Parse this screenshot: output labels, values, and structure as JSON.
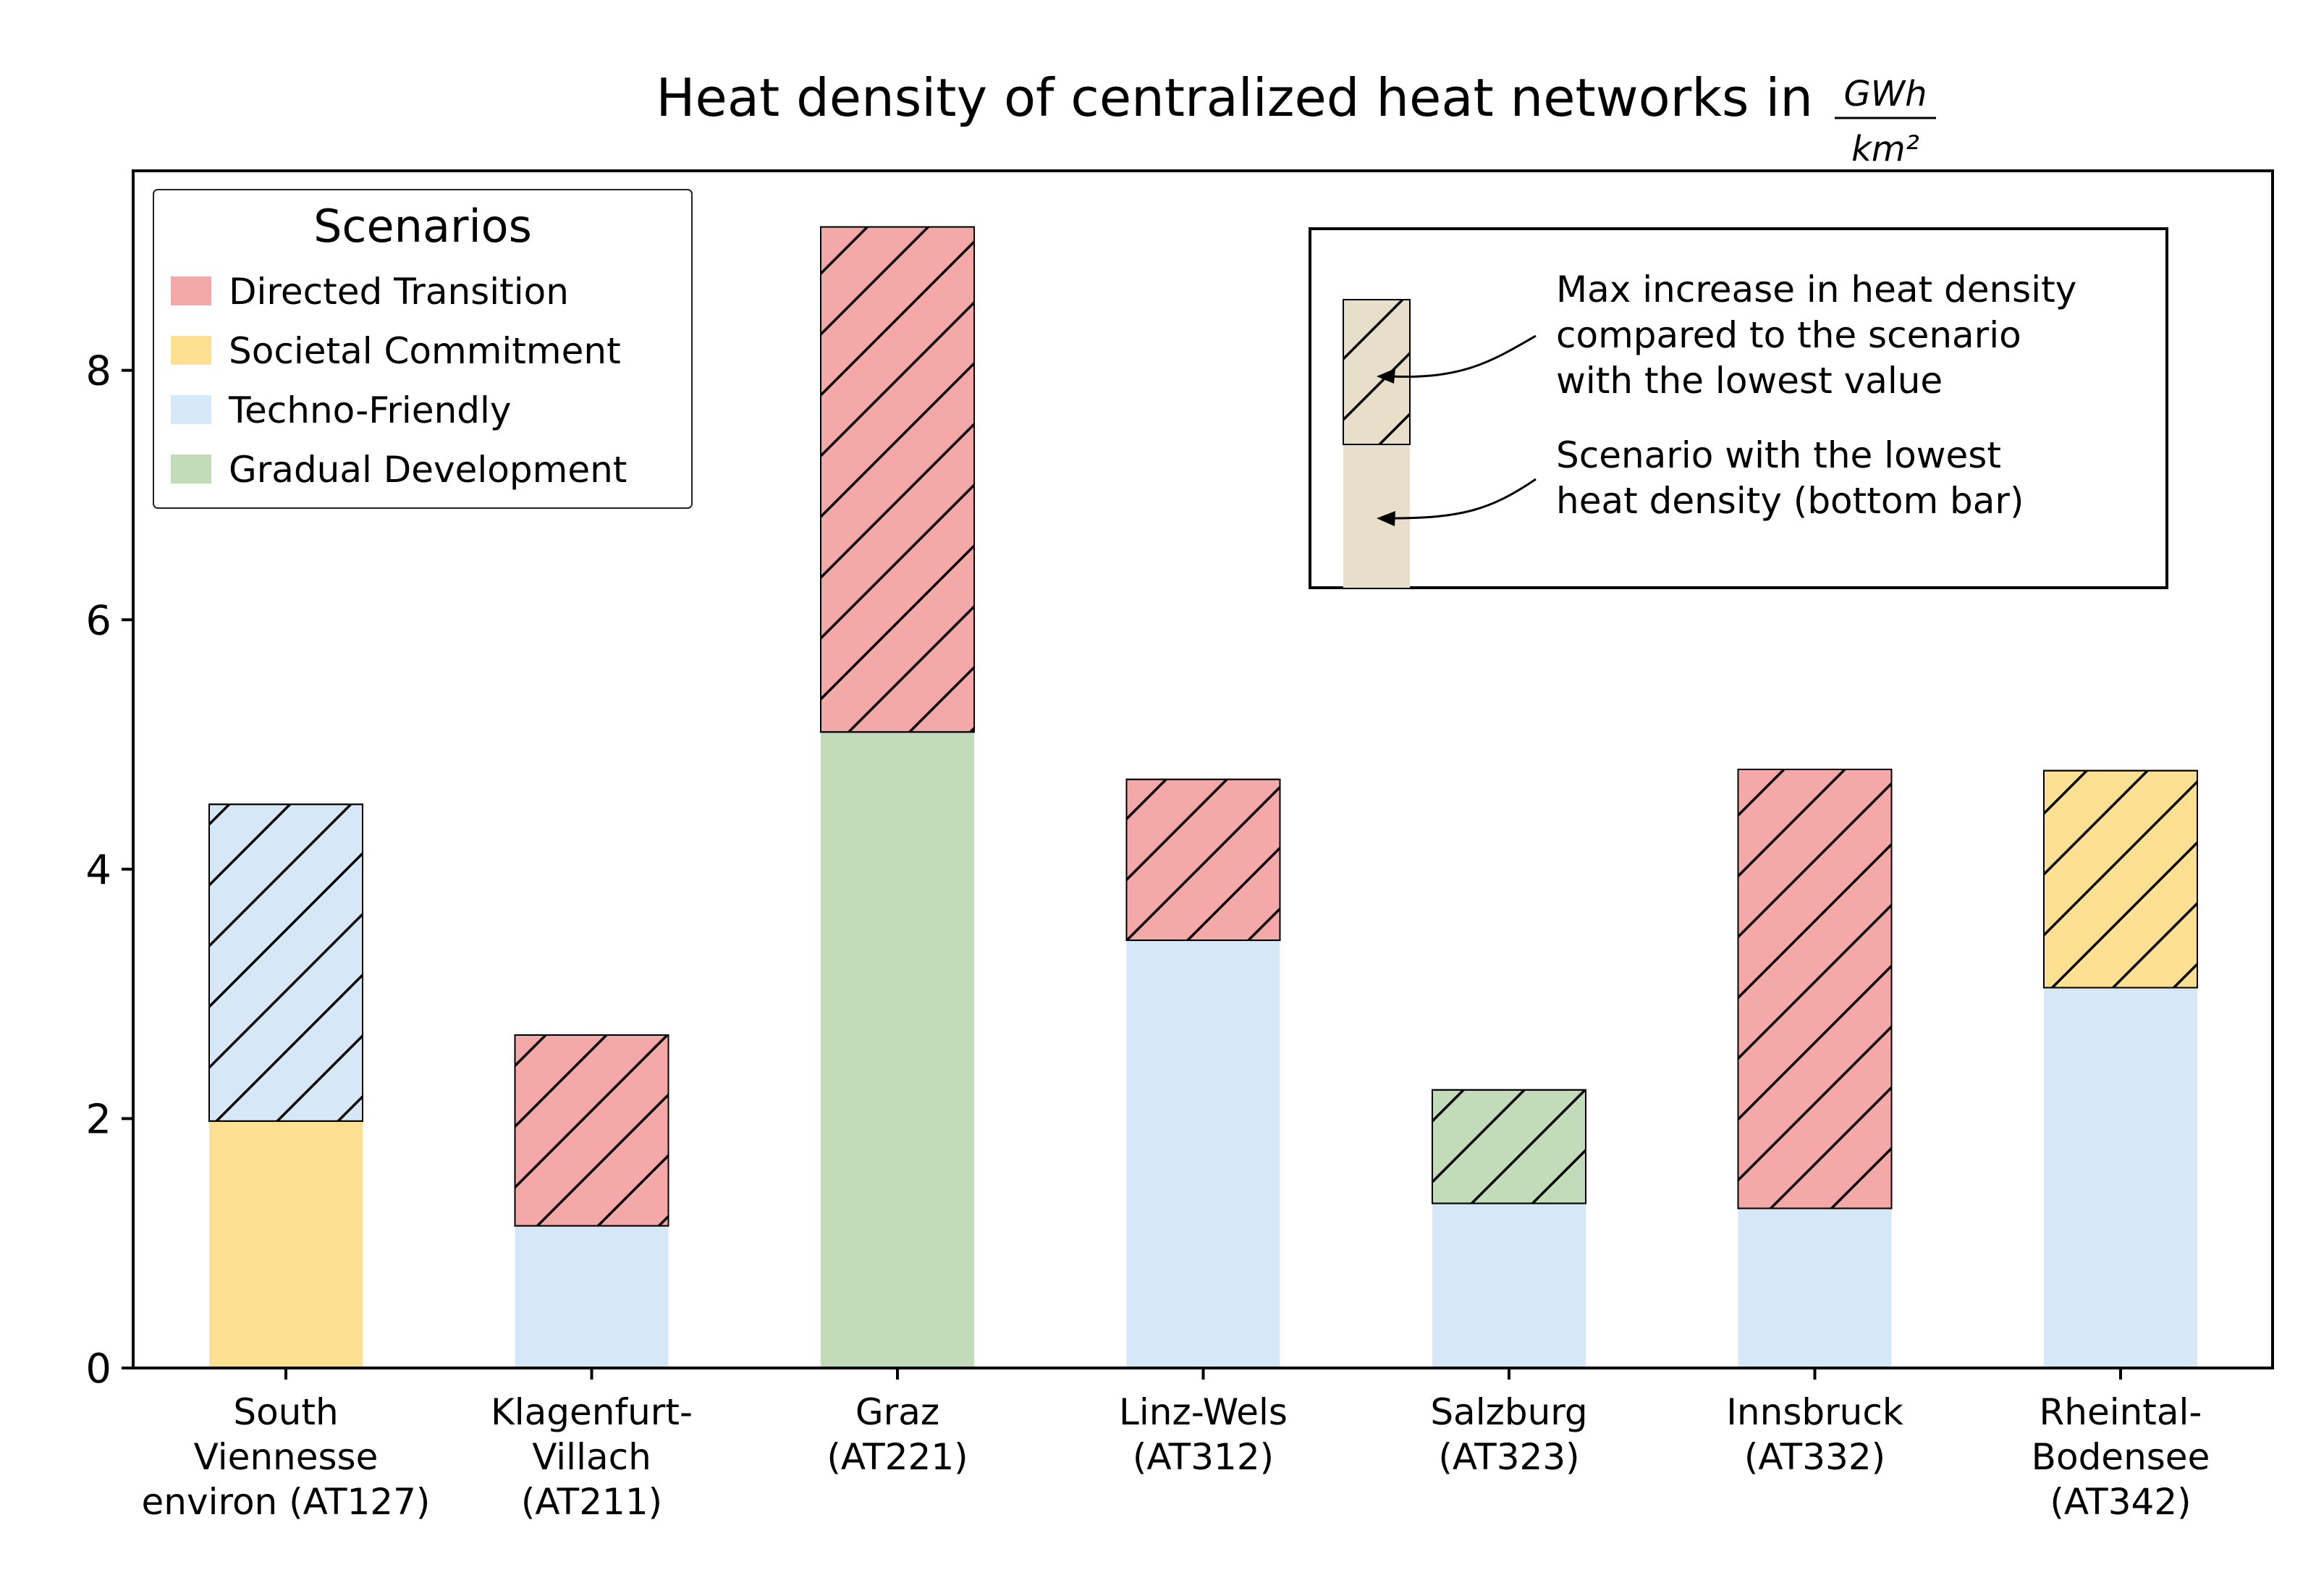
{
  "chart_data": {
    "type": "bar",
    "stacked": true,
    "title": "Heat density of centralized heat networks in",
    "title_unit": {
      "numerator": "GWh",
      "denominator": "km²"
    },
    "xlabel": "",
    "ylabel": "",
    "ylim": [
      0,
      9.6
    ],
    "yticks": [
      "0",
      "2",
      "4",
      "6",
      "8"
    ],
    "grid": false,
    "legend": {
      "title": "Scenarios",
      "placement": "top-left",
      "entries": [
        {
          "label": "Directed Transition",
          "color": "#f4a9a8"
        },
        {
          "label": "Societal Commitment",
          "color": "#fde092"
        },
        {
          "label": "Techno-Friendly",
          "color": "#d6e8f7"
        },
        {
          "label": "Gradual Development",
          "color": "#c2dbb8"
        }
      ]
    },
    "categories": [
      [
        "South",
        "Viennesse",
        "environ (AT127)"
      ],
      [
        "Klagenfurt-",
        "Villach",
        "(AT211)"
      ],
      [
        "Graz",
        "(AT221)"
      ],
      [
        "Linz-Wels",
        "(AT312)"
      ],
      [
        "Salzburg",
        "(AT323)"
      ],
      [
        "Innsbruck",
        "(AT332)"
      ],
      [
        "Rheintal-",
        "Bodensee",
        "(AT342)"
      ]
    ],
    "bars": [
      {
        "base": 1.98,
        "base_scenario": "Societal Commitment",
        "top": 4.52,
        "top_scenario": "Techno-Friendly"
      },
      {
        "base": 1.14,
        "base_scenario": "Techno-Friendly",
        "top": 2.67,
        "top_scenario": "Directed Transition"
      },
      {
        "base": 5.1,
        "base_scenario": "Gradual Development",
        "top": 9.15,
        "top_scenario": "Directed Transition"
      },
      {
        "base": 3.43,
        "base_scenario": "Techno-Friendly",
        "top": 4.72,
        "top_scenario": "Directed Transition"
      },
      {
        "base": 1.32,
        "base_scenario": "Techno-Friendly",
        "top": 2.23,
        "top_scenario": "Gradual Development"
      },
      {
        "base": 1.28,
        "base_scenario": "Techno-Friendly",
        "top": 4.8,
        "top_scenario": "Directed Transition"
      },
      {
        "base": 3.05,
        "base_scenario": "Techno-Friendly",
        "top": 4.79,
        "top_scenario": "Societal Commitment"
      }
    ],
    "explanation": {
      "placement": "top-right",
      "swatch_color": "#e8dfca",
      "increase_lines": [
        "Max increase in heat density",
        "compared to the scenario",
        "with the lowest value"
      ],
      "base_lines": [
        "Scenario with the lowest",
        "heat density (bottom bar)"
      ]
    }
  }
}
